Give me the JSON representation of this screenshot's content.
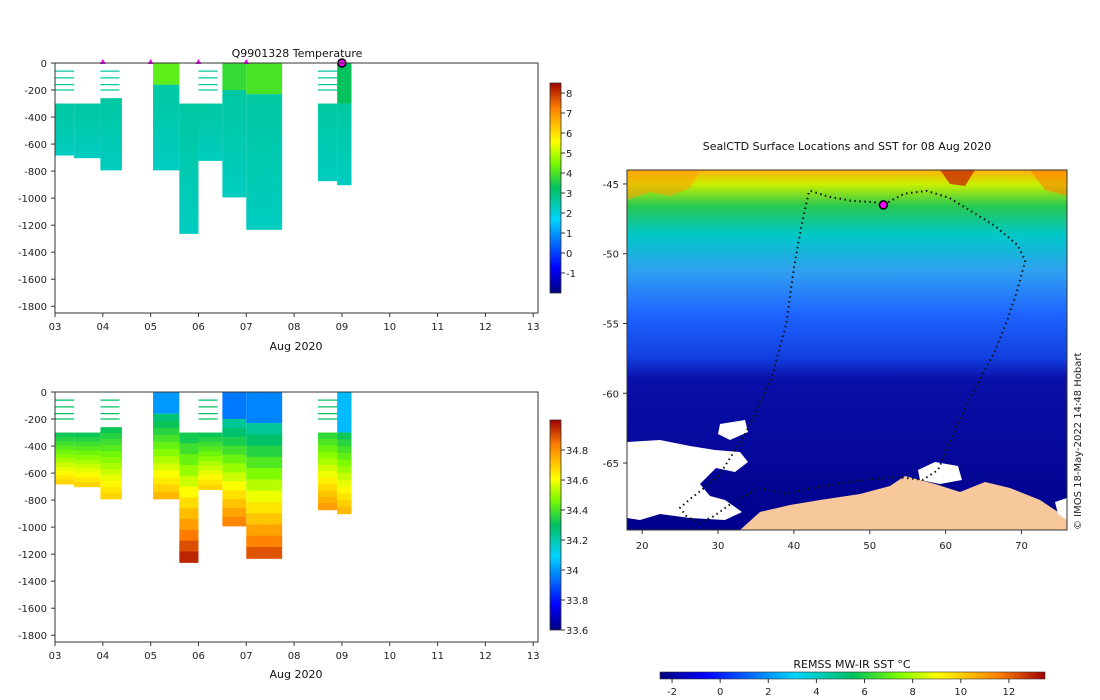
{
  "colors": {
    "land": "#f7c89b",
    "ice": "#ffffff",
    "marker": "#ff00ff",
    "track": "#111111"
  },
  "chart_data": [
    {
      "type": "heatmap",
      "title": "Q9901328  Temperature",
      "xlabel": "Aug 2020",
      "ylabel": "",
      "x_ticks": [
        "03",
        "04",
        "05",
        "06",
        "07",
        "08",
        "09",
        "10",
        "11",
        "12",
        "13"
      ],
      "y_ticks": [
        "0",
        "-200",
        "-400",
        "-600",
        "-800",
        "-1000",
        "-1200",
        "-1400",
        "-1600",
        "-1800"
      ],
      "xlim": [
        3,
        13.1
      ],
      "ylim": [
        -1850,
        0
      ],
      "colorbar": {
        "min": -2,
        "max": 8.5,
        "ticks": [
          "-1",
          "0",
          "1",
          "2",
          "3",
          "4",
          "5",
          "6",
          "7",
          "8"
        ]
      },
      "profiles": [
        {
          "x0": 3.0,
          "x1": 3.4,
          "depth": 680,
          "surface": 300,
          "value_top": 2.6,
          "value_bottom": 2.3
        },
        {
          "x0": 3.4,
          "x1": 3.95,
          "depth": 700,
          "surface": 300,
          "value_top": 2.6,
          "value_bottom": 2.3
        },
        {
          "x0": 3.95,
          "x1": 4.4,
          "depth": 790,
          "surface": 260,
          "value_top": 2.6,
          "value_bottom": 2.3
        },
        {
          "x0": 5.05,
          "x1": 5.6,
          "depth": 790,
          "surface": 160,
          "value_top": 2.6,
          "value_bottom": 2.3
        },
        {
          "x0": 5.6,
          "x1": 6.0,
          "depth": 1260,
          "surface": 300,
          "value_top": 2.6,
          "value_bottom": 2.3
        },
        {
          "x0": 6.0,
          "x1": 6.5,
          "depth": 720,
          "surface": 300,
          "value_top": 2.6,
          "value_bottom": 2.3
        },
        {
          "x0": 6.5,
          "x1": 7.0,
          "depth": 990,
          "surface": 200,
          "value_top": 2.6,
          "value_bottom": 2.3
        },
        {
          "x0": 7.0,
          "x1": 7.75,
          "depth": 1230,
          "surface": 230,
          "value_top": 2.6,
          "value_bottom": 2.3
        },
        {
          "x0": 8.5,
          "x1": 8.9,
          "depth": 870,
          "surface": 300,
          "value_top": 2.6,
          "value_bottom": 2.3
        },
        {
          "x0": 8.9,
          "x1": 9.2,
          "depth": 900,
          "surface": 300,
          "value_top": 2.6,
          "value_bottom": 2.3
        }
      ],
      "surface_blocks": [
        {
          "x0": 5.05,
          "x1": 5.6,
          "depth": 160,
          "value": 4.2
        },
        {
          "x0": 6.5,
          "x1": 7.0,
          "depth": 200,
          "value": 3.8
        },
        {
          "x0": 7.0,
          "x1": 7.75,
          "depth": 230,
          "value": 4.0
        },
        {
          "x0": 8.9,
          "x1": 9.2,
          "depth": 300,
          "value": 3.3
        }
      ],
      "markers_x": [
        4.0,
        5.0,
        6.0,
        7.0,
        9.0
      ]
    },
    {
      "type": "heatmap",
      "title": "",
      "xlabel": "Aug 2020",
      "ylabel": "",
      "x_ticks": [
        "03",
        "04",
        "05",
        "06",
        "07",
        "08",
        "09",
        "10",
        "11",
        "12",
        "13"
      ],
      "y_ticks": [
        "0",
        "-200",
        "-400",
        "-600",
        "-800",
        "-1000",
        "-1200",
        "-1400",
        "-1600",
        "-1800"
      ],
      "xlim": [
        3,
        13.1
      ],
      "ylim": [
        -1850,
        0
      ],
      "colorbar": {
        "min": 33.6,
        "max": 35.0,
        "ticks": [
          "33.6",
          "33.8",
          "34",
          "34.2",
          "34.4",
          "34.6",
          "34.8"
        ]
      },
      "profiles": [
        {
          "x0": 3.0,
          "x1": 3.4,
          "depth": 680,
          "surface": 300,
          "value_top": 34.3,
          "value_bottom": 34.7
        },
        {
          "x0": 3.4,
          "x1": 3.95,
          "depth": 700,
          "surface": 300,
          "value_top": 34.3,
          "value_bottom": 34.7
        },
        {
          "x0": 3.95,
          "x1": 4.4,
          "depth": 790,
          "surface": 260,
          "value_top": 34.3,
          "value_bottom": 34.7
        },
        {
          "x0": 5.05,
          "x1": 5.6,
          "depth": 790,
          "surface": 160,
          "value_top": 34.25,
          "value_bottom": 34.75
        },
        {
          "x0": 5.6,
          "x1": 6.0,
          "depth": 1260,
          "surface": 300,
          "value_top": 34.3,
          "value_bottom": 34.98
        },
        {
          "x0": 6.0,
          "x1": 6.5,
          "depth": 720,
          "surface": 300,
          "value_top": 34.3,
          "value_bottom": 34.7
        },
        {
          "x0": 6.5,
          "x1": 7.0,
          "depth": 990,
          "surface": 200,
          "value_top": 34.2,
          "value_bottom": 34.85
        },
        {
          "x0": 7.0,
          "x1": 7.75,
          "depth": 1230,
          "surface": 230,
          "value_top": 34.2,
          "value_bottom": 34.92
        },
        {
          "x0": 8.5,
          "x1": 8.9,
          "depth": 870,
          "surface": 300,
          "value_top": 34.35,
          "value_bottom": 34.8
        },
        {
          "x0": 8.9,
          "x1": 9.2,
          "depth": 900,
          "surface": 300,
          "value_top": 34.3,
          "value_bottom": 34.75
        }
      ],
      "surface_blocks": [
        {
          "x0": 5.05,
          "x1": 5.6,
          "depth": 160,
          "value": 34.0
        },
        {
          "x0": 6.5,
          "x1": 7.0,
          "depth": 200,
          "value": 33.95
        },
        {
          "x0": 7.0,
          "x1": 7.75,
          "depth": 230,
          "value": 33.97
        },
        {
          "x0": 8.9,
          "x1": 9.2,
          "depth": 300,
          "value": 34.05
        }
      ],
      "markers_x": []
    },
    {
      "type": "heatmap",
      "title": "SealCTD Surface Locations and SST for 08 Aug 2020",
      "xlabel": "",
      "ylabel": "",
      "x_ticks": [
        "20",
        "30",
        "40",
        "50",
        "60",
        "70"
      ],
      "y_ticks": [
        "-45",
        "-50",
        "-55",
        "-60",
        "-65"
      ],
      "xlim": [
        18,
        76
      ],
      "ylim": [
        -69.8,
        -44
      ],
      "colorbar_label": "REMSS MW-IR SST °C",
      "colorbar": {
        "min": -2.5,
        "max": 13.5,
        "ticks": [
          "-2",
          "0",
          "2",
          "4",
          "6",
          "8",
          "10",
          "12"
        ]
      },
      "credit": "© IMOS 18-May-2022 14:48 Hobart",
      "track_lon": [
        42.2,
        44.5,
        47.5,
        50.5,
        51.8,
        54.5,
        57.5,
        60.5,
        63.5,
        66.5,
        69.5,
        70.5,
        69.5,
        68.3,
        66.5,
        63.5,
        61.0,
        59.0,
        57.0,
        53.5,
        49.5,
        45.5,
        42.5,
        39.0,
        35.5,
        32.0,
        29.5,
        27.5,
        25.8,
        25.0,
        26.5,
        30.0,
        33.5,
        37.0,
        39.0,
        40.0,
        41.0,
        42.0
      ],
      "track_lat": [
        -45.5,
        -45.9,
        -46.2,
        -46.3,
        -46.5,
        -45.7,
        -45.5,
        -46.0,
        -47.0,
        -48.0,
        -49.4,
        -50.5,
        -52.5,
        -54.5,
        -57.0,
        -60.0,
        -63.0,
        -65.5,
        -66.2,
        -66.0,
        -66.2,
        -66.5,
        -66.8,
        -67.2,
        -66.8,
        -67.8,
        -68.8,
        -69.3,
        -68.8,
        -68.2,
        -67.5,
        -66.0,
        -63.0,
        -59.0,
        -55.0,
        -51.0,
        -48.0,
        -45.5
      ],
      "current_lon": 51.8,
      "current_lat": -46.5
    }
  ]
}
